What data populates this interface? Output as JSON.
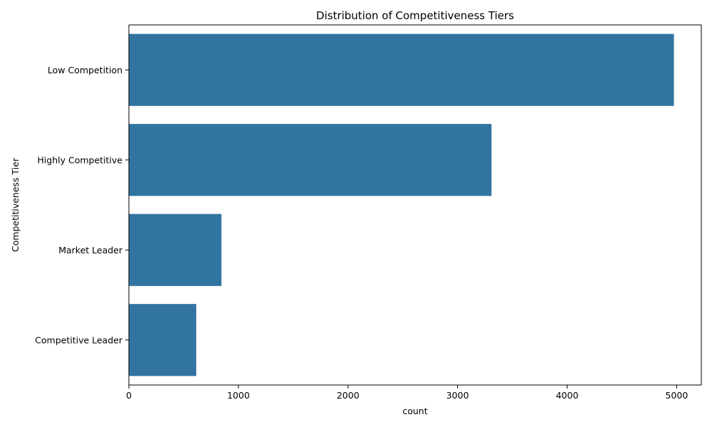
{
  "chart_data": {
    "type": "bar",
    "orientation": "horizontal",
    "title": "Distribution of Competitiveness Tiers",
    "xlabel": "count",
    "ylabel": "Competitiveness Tier",
    "categories": [
      "Low Competition",
      "Highly Competitive",
      "Market Leader",
      "Competitive Leader"
    ],
    "values": [
      4975,
      3310,
      845,
      615
    ],
    "xlim": [
      0,
      5225
    ],
    "xticks": [
      0,
      1000,
      2000,
      3000,
      4000,
      5000
    ],
    "grid": false,
    "bar_color": "#3274a1"
  }
}
